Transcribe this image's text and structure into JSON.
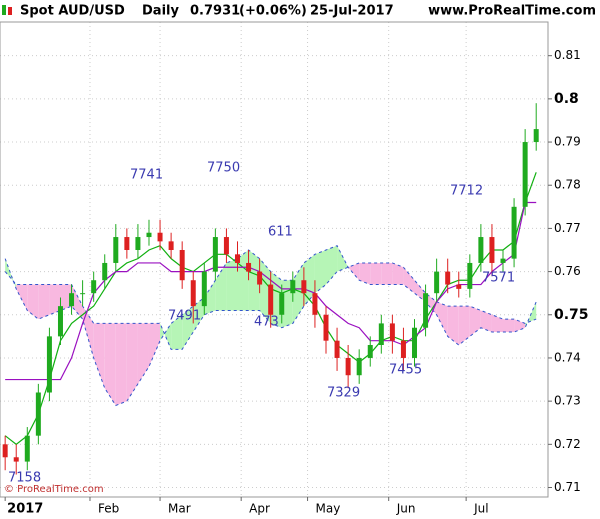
{
  "chart_data": {
    "type": "candlestick",
    "title": "Spot AUD/USD",
    "period": "Daily",
    "last_price": "0.7931",
    "change": "(+0.06%)",
    "date": "25-Jul-2017",
    "source": "www.ProRealTime.com",
    "copyright": "© ProRealTime.com",
    "x": [
      0,
      3,
      6,
      9,
      12,
      15,
      18,
      21,
      24,
      27,
      30,
      33,
      36,
      39,
      42,
      45,
      48,
      51,
      54,
      57,
      60,
      63,
      66,
      69,
      72,
      75,
      78,
      81,
      84,
      87,
      90,
      93,
      96,
      99,
      102,
      105,
      108,
      111,
      114,
      117,
      120,
      123,
      126,
      129,
      132,
      135,
      138,
      141,
      144
    ],
    "open": [
      0.72,
      0.717,
      0.716,
      0.722,
      0.732,
      0.745,
      0.752,
      0.755,
      0.755,
      0.758,
      0.762,
      0.768,
      0.765,
      0.768,
      0.769,
      0.767,
      0.765,
      0.758,
      0.752,
      0.76,
      0.768,
      0.764,
      0.762,
      0.76,
      0.757,
      0.75,
      0.755,
      0.758,
      0.755,
      0.75,
      0.744,
      0.74,
      0.736,
      0.74,
      0.743,
      0.748,
      0.744,
      0.74,
      0.747,
      0.755,
      0.76,
      0.757,
      0.756,
      0.762,
      0.768,
      0.762,
      0.763,
      0.775,
      0.79
    ],
    "high": [
      0.722,
      0.72,
      0.724,
      0.734,
      0.747,
      0.754,
      0.757,
      0.758,
      0.76,
      0.764,
      0.771,
      0.77,
      0.771,
      0.772,
      0.772,
      0.769,
      0.767,
      0.76,
      0.762,
      0.77,
      0.77,
      0.767,
      0.765,
      0.763,
      0.76,
      0.757,
      0.76,
      0.761,
      0.758,
      0.752,
      0.747,
      0.743,
      0.742,
      0.745,
      0.75,
      0.75,
      0.747,
      0.749,
      0.757,
      0.763,
      0.763,
      0.76,
      0.764,
      0.771,
      0.771,
      0.765,
      0.777,
      0.793,
      0.799
    ],
    "low": [
      0.714,
      0.713,
      0.714,
      0.72,
      0.73,
      0.743,
      0.75,
      0.752,
      0.753,
      0.756,
      0.76,
      0.763,
      0.763,
      0.766,
      0.765,
      0.763,
      0.756,
      0.748,
      0.75,
      0.758,
      0.762,
      0.76,
      0.758,
      0.755,
      0.747,
      0.748,
      0.753,
      0.752,
      0.747,
      0.741,
      0.737,
      0.733,
      0.734,
      0.738,
      0.741,
      0.741,
      0.737,
      0.738,
      0.745,
      0.753,
      0.755,
      0.754,
      0.754,
      0.76,
      0.759,
      0.76,
      0.761,
      0.773,
      0.788
    ],
    "close": [
      0.717,
      0.716,
      0.722,
      0.732,
      0.745,
      0.752,
      0.755,
      0.755,
      0.758,
      0.762,
      0.768,
      0.765,
      0.768,
      0.769,
      0.767,
      0.765,
      0.758,
      0.752,
      0.76,
      0.768,
      0.764,
      0.762,
      0.76,
      0.757,
      0.75,
      0.755,
      0.758,
      0.755,
      0.75,
      0.744,
      0.74,
      0.736,
      0.74,
      0.743,
      0.748,
      0.744,
      0.74,
      0.747,
      0.755,
      0.76,
      0.757,
      0.756,
      0.762,
      0.768,
      0.762,
      0.763,
      0.775,
      0.79,
      0.793
    ],
    "up_color": "#1faa1f",
    "down_color": "#dd2020",
    "span_a": [
      0.763,
      0.756,
      0.751,
      0.749,
      0.75,
      0.751,
      0.752,
      0.749,
      0.74,
      0.733,
      0.729,
      0.73,
      0.734,
      0.738,
      0.744,
      0.748,
      0.75,
      0.752,
      0.754,
      0.758,
      0.762,
      0.763,
      0.765,
      0.763,
      0.76,
      0.758,
      0.758,
      0.762,
      0.764,
      0.765,
      0.766,
      0.761,
      0.758,
      0.757,
      0.757,
      0.757,
      0.757,
      0.755,
      0.753,
      0.75,
      0.745,
      0.743,
      0.745,
      0.747,
      0.746,
      0.746,
      0.746,
      0.747,
      0.753
    ],
    "span_b": [
      0.76,
      0.757,
      0.757,
      0.757,
      0.757,
      0.757,
      0.757,
      0.752,
      0.748,
      0.748,
      0.748,
      0.748,
      0.748,
      0.748,
      0.748,
      0.742,
      0.742,
      0.746,
      0.75,
      0.751,
      0.751,
      0.751,
      0.751,
      0.751,
      0.748,
      0.747,
      0.748,
      0.752,
      0.755,
      0.757,
      0.76,
      0.761,
      0.762,
      0.762,
      0.762,
      0.762,
      0.761,
      0.758,
      0.755,
      0.753,
      0.752,
      0.752,
      0.752,
      0.751,
      0.75,
      0.749,
      0.749,
      0.748,
      0.749
    ],
    "cloud_up_color": "#b6f5b6",
    "cloud_down_color": "#f8b8e0",
    "span_color": "#3355cc",
    "series": [
      {
        "name": "tenkan",
        "color": "#10b010",
        "values": [
          0.722,
          0.72,
          0.722,
          0.727,
          0.735,
          0.744,
          0.748,
          0.75,
          0.752,
          0.756,
          0.76,
          0.762,
          0.763,
          0.765,
          0.766,
          0.763,
          0.761,
          0.76,
          0.762,
          0.764,
          0.764,
          0.762,
          0.76,
          0.759,
          0.756,
          0.755,
          0.756,
          0.755,
          0.752,
          0.747,
          0.743,
          0.741,
          0.739,
          0.741,
          0.744,
          0.745,
          0.744,
          0.744,
          0.749,
          0.753,
          0.757,
          0.758,
          0.758,
          0.762,
          0.765,
          0.765,
          0.767,
          0.776,
          0.783
        ]
      },
      {
        "name": "kijun",
        "color": "#9a10c0",
        "values": [
          0.735,
          0.735,
          0.735,
          0.735,
          0.735,
          0.735,
          0.74,
          0.748,
          0.755,
          0.758,
          0.76,
          0.76,
          0.762,
          0.762,
          0.762,
          0.76,
          0.76,
          0.76,
          0.76,
          0.761,
          0.761,
          0.761,
          0.761,
          0.76,
          0.758,
          0.756,
          0.756,
          0.756,
          0.755,
          0.752,
          0.75,
          0.748,
          0.747,
          0.744,
          0.744,
          0.744,
          0.743,
          0.745,
          0.747,
          0.753,
          0.756,
          0.757,
          0.757,
          0.757,
          0.76,
          0.762,
          0.764,
          0.776,
          0.776
        ]
      }
    ],
    "annotations": [
      "7158",
      "7741",
      "7750",
      "611",
      "7491",
      "473",
      "7329",
      "7455",
      "7712",
      "7571"
    ],
    "xlim": [
      -1.4,
      147.2
    ],
    "xticks": [
      {
        "value": 0,
        "label": "2017"
      },
      {
        "value": 23,
        "label": "Feb"
      },
      {
        "value": 42,
        "label": "Mar"
      },
      {
        "value": 64,
        "label": "Apr"
      },
      {
        "value": 82,
        "label": "May"
      },
      {
        "value": 104,
        "label": "Jun"
      },
      {
        "value": 125,
        "label": "Jul"
      }
    ],
    "ylim": [
      0.7078,
      0.8178
    ],
    "yticks": [
      0.71,
      0.72,
      0.73,
      0.74,
      0.75,
      0.76,
      0.77,
      0.78,
      0.79,
      0.8,
      0.81
    ],
    "grid": true
  }
}
